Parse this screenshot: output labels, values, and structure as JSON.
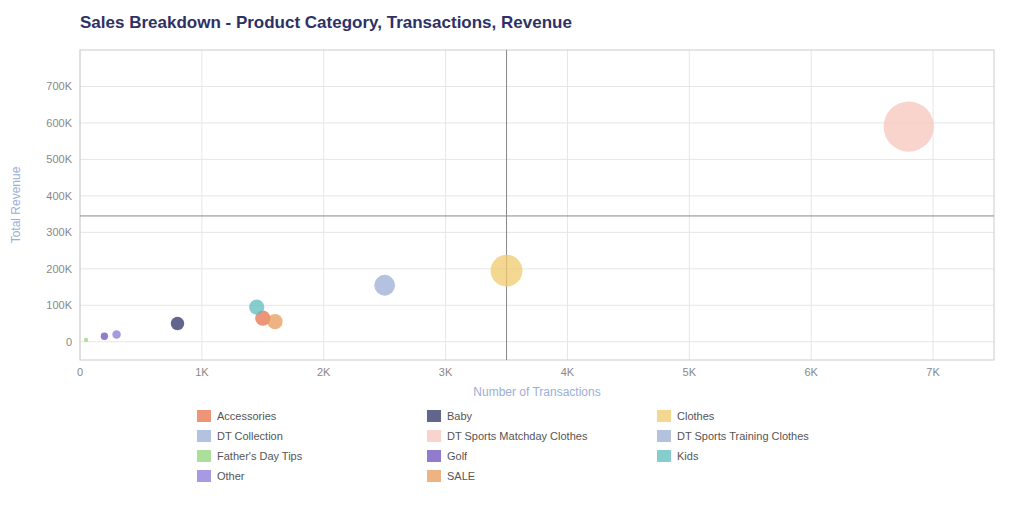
{
  "chart_data": {
    "type": "bubble",
    "title": "Sales Breakdown - Product Category, Transactions, Revenue",
    "x_label": "Number of Transactions",
    "y_label": "Total Revenue",
    "series": [
      {
        "name": "Accessories",
        "color": "#E8714A",
        "x": [
          1500
        ],
        "values": [
          65000
        ],
        "sizes": [
          65000
        ]
      },
      {
        "name": "Baby",
        "color": "#2E3165",
        "x": [
          800
        ],
        "values": [
          50000
        ],
        "sizes": [
          50000
        ]
      },
      {
        "name": "Clothes",
        "color": "#F0C96B",
        "x": [
          3500
        ],
        "values": [
          195000
        ],
        "sizes": [
          280000
        ]
      },
      {
        "name": "DT Collection",
        "color": "#9BAED6",
        "x": [
          2500
        ],
        "values": [
          155000
        ],
        "sizes": [
          120000
        ]
      },
      {
        "name": "DT Sports Matchday Clothes",
        "color": "#F5C6BB",
        "x": [
          6800
        ],
        "values": [
          590000
        ],
        "sizes": [
          700000
        ]
      },
      {
        "name": "DT Sports Training Clothes",
        "color": "#9BAED6",
        "x": [],
        "values": [],
        "sizes": []
      },
      {
        "name": "Father's Day Tips",
        "color": "#90D47A",
        "x": [
          50
        ],
        "values": [
          5000
        ],
        "sizes": [
          5000
        ]
      },
      {
        "name": "Golf",
        "color": "#6B4FBB",
        "x": [
          200
        ],
        "values": [
          15000
        ],
        "sizes": [
          15000
        ]
      },
      {
        "name": "Kids",
        "color": "#5FBCBC",
        "x": [
          1450
        ],
        "values": [
          95000
        ],
        "sizes": [
          65000
        ]
      },
      {
        "name": "Other",
        "color": "#8B77D9",
        "x": [
          300
        ],
        "values": [
          20000
        ],
        "sizes": [
          20000
        ]
      },
      {
        "name": "SALE",
        "color": "#E89A5A",
        "x": [
          1600
        ],
        "values": [
          55000
        ],
        "sizes": [
          65000
        ]
      }
    ],
    "refline_x": 3500,
    "refline_y": 345000,
    "xlim": [
      0,
      7500
    ],
    "ylim": [
      -50000,
      800000
    ],
    "xticks": [
      0,
      {
        "value": 1000,
        "label": "1K"
      },
      {
        "value": 2000,
        "label": "2K"
      },
      {
        "value": 3000,
        "label": "3K"
      },
      {
        "value": 4000,
        "label": "4K"
      },
      {
        "value": 5000,
        "label": "5K"
      },
      {
        "value": 6000,
        "label": "6K"
      },
      {
        "value": 7000,
        "label": "7K"
      }
    ],
    "yticks": [
      0,
      {
        "value": 100000,
        "label": "100K"
      },
      {
        "value": 200000,
        "label": "200K"
      },
      {
        "value": 300000,
        "label": "300K"
      },
      {
        "value": 400000,
        "label": "400K"
      },
      {
        "value": 500000,
        "label": "500K"
      },
      {
        "value": 600000,
        "label": "600K"
      },
      {
        "value": 700000,
        "label": "700K"
      }
    ],
    "grid": true,
    "legend": "bottom"
  }
}
